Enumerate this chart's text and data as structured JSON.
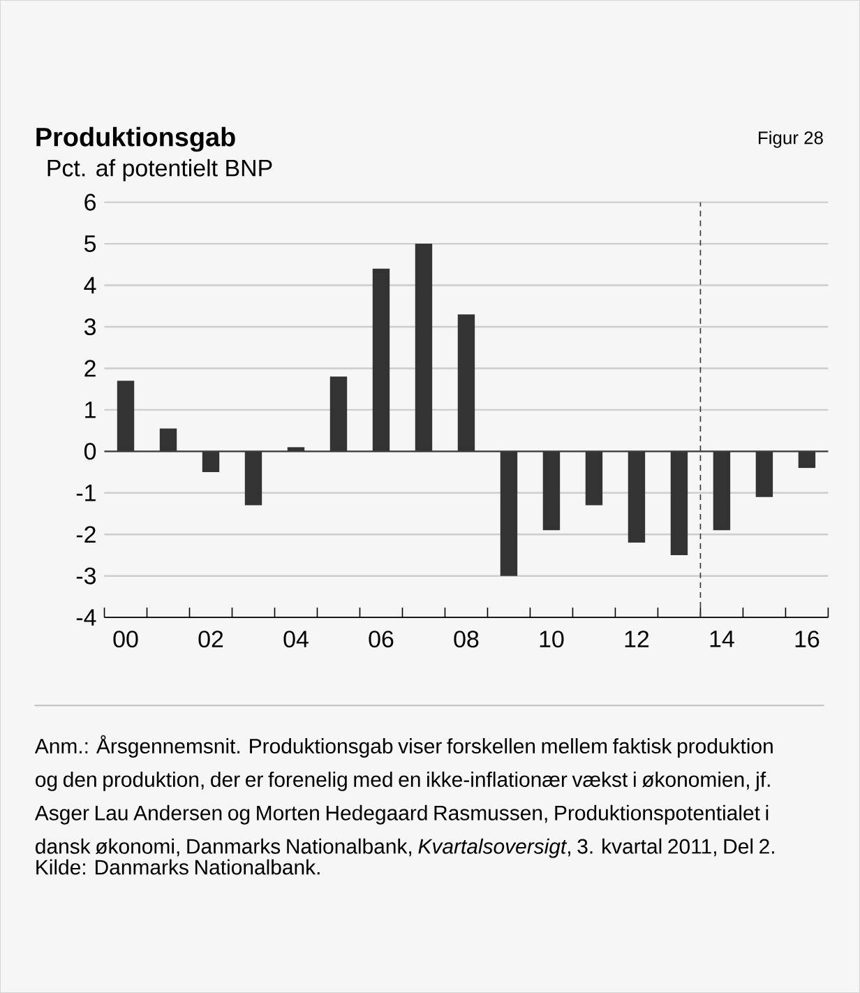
{
  "chart_data": {
    "type": "bar",
    "title": "Produktionsgab",
    "ylabel": "Pct. af potentielt BNP",
    "x": [
      2000,
      2001,
      2002,
      2003,
      2004,
      2005,
      2006,
      2007,
      2008,
      2009,
      2010,
      2011,
      2012,
      2013,
      2014,
      2015,
      2016
    ],
    "values": [
      1.7,
      0.55,
      -0.5,
      -1.3,
      0.1,
      1.8,
      4.4,
      5.0,
      3.3,
      -3.0,
      -1.9,
      -1.3,
      -2.2,
      -2.5,
      -1.9,
      -1.1,
      -0.4
    ],
    "color": "#333333",
    "xlim": [
      1999.5,
      2016.5
    ],
    "ylim": [
      -4,
      6
    ],
    "yticks": [
      -4,
      -3,
      -2,
      -1,
      0,
      1,
      2,
      3,
      4,
      5,
      6
    ],
    "xticks": [
      {
        "value": 2000,
        "label": "00"
      },
      {
        "value": 2002,
        "label": "02"
      },
      {
        "value": 2004,
        "label": "04"
      },
      {
        "value": 2006,
        "label": "06"
      },
      {
        "value": 2008,
        "label": "08"
      },
      {
        "value": 2010,
        "label": "10"
      },
      {
        "value": 2012,
        "label": "12"
      },
      {
        "value": 2014,
        "label": "14"
      },
      {
        "value": 2016,
        "label": "16"
      },
      {
        "value": 1999.5,
        "label": null
      },
      {
        "value": 2000.5,
        "label": null
      },
      {
        "value": 2001.5,
        "label": null
      },
      {
        "value": 2002.5,
        "label": null
      },
      {
        "value": 2003.5,
        "label": null
      },
      {
        "value": 2004.5,
        "label": null
      },
      {
        "value": 2005.5,
        "label": null
      },
      {
        "value": 2006.5,
        "label": null
      },
      {
        "value": 2007.5,
        "label": null
      },
      {
        "value": 2008.5,
        "label": null
      },
      {
        "value": 2009.5,
        "label": null
      },
      {
        "value": 2010.5,
        "label": null
      },
      {
        "value": 2011.5,
        "label": null
      },
      {
        "value": 2012.5,
        "label": null
      },
      {
        "value": 2013.5,
        "label": null
      },
      {
        "value": 2014.5,
        "label": null
      },
      {
        "value": 2015.5,
        "label": null
      },
      {
        "value": 2016.5,
        "label": null
      }
    ],
    "grid": "y",
    "ref_lines": [
      {
        "axis": "x",
        "value": 2013.5,
        "color": "#333333",
        "line_style": "dashed"
      }
    ],
    "annotations": [
      "Figur 28",
      "Anm.: Årsgennemsnit. Produktionsgab viser forskellen mellem faktisk produktion og den produktion, der er forenelig med en ikke-inflationær vækst i økonomien, jf. Asger Lau Andersen og Morten Hedegaard Rasmussen, Produktionspotentialet i dansk økonomi, Danmarks Nationalbank, *Kvartalsoversigt*, 3. kvartal 2011, Del 2.",
      "Kilde: Danmarks Nationalbank."
    ]
  }
}
